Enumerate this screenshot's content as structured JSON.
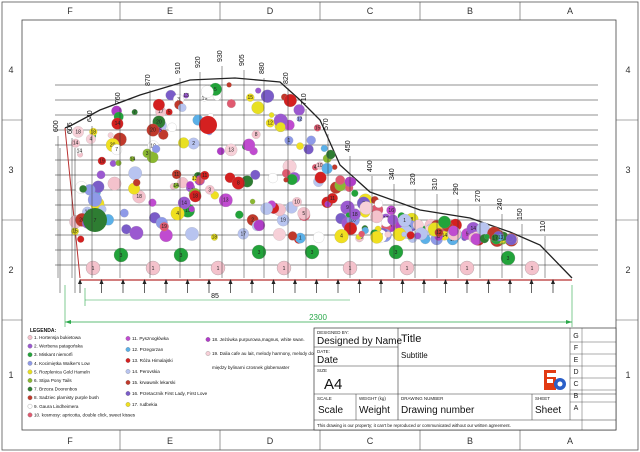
{
  "frame": {
    "columns": [
      "F",
      "E",
      "D",
      "C",
      "B",
      "A"
    ],
    "rows": [
      "4",
      "3",
      "2",
      "1"
    ],
    "right_rows": [
      "G",
      "F",
      "E",
      "D",
      "C",
      "B",
      "A"
    ]
  },
  "heights": [
    "600",
    "605",
    "640",
    "760",
    "870",
    "910",
    "920",
    "930",
    "905",
    "880",
    "820",
    "710",
    "570",
    "450",
    "400",
    "340",
    "320",
    "310",
    "290",
    "270",
    "240",
    "150",
    "110"
  ],
  "plant_numbers": [
    "1",
    "2",
    "3",
    "4",
    "5",
    "6",
    "7",
    "8",
    "9",
    "10",
    "11",
    "12",
    "13",
    "14",
    "15",
    "16",
    "17",
    "18",
    "19",
    "20"
  ],
  "dimensions": {
    "short": "85",
    "total": "2300"
  },
  "legend": {
    "title": "LEGENDA:",
    "col1": [
      {
        "num": "1.",
        "text": "Hortensja bukietowa",
        "color": "#f4c2cc"
      },
      {
        "num": "2.",
        "text": "Werbena patagońska",
        "color": "#9b59d0"
      },
      {
        "num": "3.",
        "text": "Miskant niemorfi",
        "color": "#22a33a"
      },
      {
        "num": "4.",
        "text": "Kocimiętka Walker's Low",
        "color": "#8e9ae8"
      },
      {
        "num": "5.",
        "text": "Rozplenica Gold Hameln",
        "color": "#e8e020"
      },
      {
        "num": "6.",
        "text": "Stipa Pony Tails",
        "color": "#8ab830"
      },
      {
        "num": "7.",
        "text": "Brzoza Doorenbos",
        "color": "#2e7d32"
      },
      {
        "num": "8.",
        "text": "Sadziec plamisty purple bush",
        "color": "#c0392b"
      },
      {
        "num": "9.",
        "text": "Gaura Lindheimera",
        "color": "#ffffff"
      },
      {
        "num": "10.",
        "text": "kosmosy: apricotta, double click, sweet kisses",
        "color": "#e05a70"
      }
    ],
    "col2": [
      {
        "num": "11.",
        "text": "Pysznogłówka",
        "color": "#c04bd0"
      },
      {
        "num": "12.",
        "text": "Przegorzan",
        "color": "#5bb0e8"
      },
      {
        "num": "13.",
        "text": "Róża Himalajski",
        "color": "#d42020"
      },
      {
        "num": "14.",
        "text": "Perovskia",
        "color": "#b8c4f0"
      },
      {
        "num": "15.",
        "text": "krwawnik lekarski",
        "color": "#c0392b"
      },
      {
        "num": "16.",
        "text": "Przetacznik First Lady, First Love",
        "color": "#7a5cc8"
      },
      {
        "num": "17.",
        "text": "rudbekia",
        "color": "#f0e020"
      }
    ],
    "col3": [
      {
        "num": "18.",
        "text": "Jeżówka purpurowa,magnus, white swan.",
        "color": "#b03cc8"
      },
      {
        "num": "19.",
        "text": "Dalia cafe au lait, melody harmony, melody dora,cross love, cornel",
        "color": "#f7d0d8"
      },
      {
        "num": "",
        "text": "między bylinami czosnek globemaster",
        "color": ""
      }
    ]
  },
  "title_block": {
    "designed_by_label": "DESIGNED BY:",
    "designed_by": "Designed by Name",
    "date_label": "DATE:",
    "date": "Date",
    "title": "Title",
    "subtitle": "Subtitle",
    "size_label": "SIZE",
    "size": "A4",
    "scale_label": "SCALE",
    "scale": "Scale",
    "weight_label": "WEIGHT (kg)",
    "weight": "Weight",
    "drawing_number_label": "DRAWING NUMBER",
    "drawing_number": "Drawing number",
    "sheet_label": "SHEET",
    "sheet": "Sheet",
    "footer": "This drawing is our property; it can't be reproduced or communicated without our written agreement."
  },
  "colors": {
    "outline": "#222222",
    "dimension": "#2aa84a",
    "base": "#b83030"
  }
}
